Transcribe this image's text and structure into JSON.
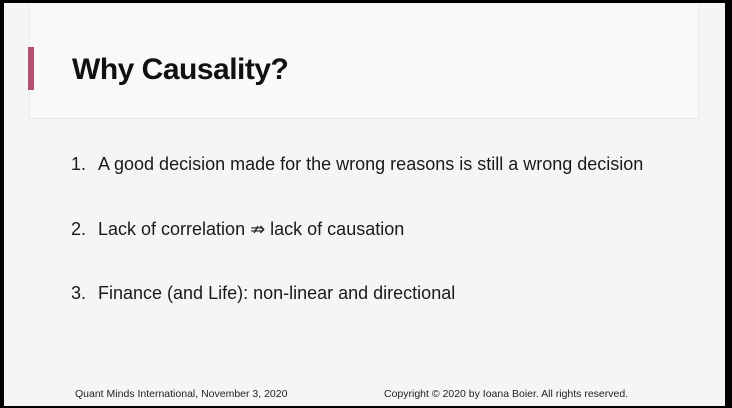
{
  "slide": {
    "title": "Why Causality?",
    "accent_color": "#b4506f",
    "points": [
      {
        "number": "1.",
        "text": "A good decision made for the wrong reasons is still a wrong decision"
      },
      {
        "number": "2.",
        "text": "Lack of correlation ⇏ lack of causation"
      },
      {
        "number": "3.",
        "text": "Finance (and Life): non-linear and directional"
      }
    ],
    "footer": {
      "left": "Quant Minds International, November 3, 2020",
      "right": "Copyright © 2020 by Ioana Boier. All rights reserved."
    }
  }
}
